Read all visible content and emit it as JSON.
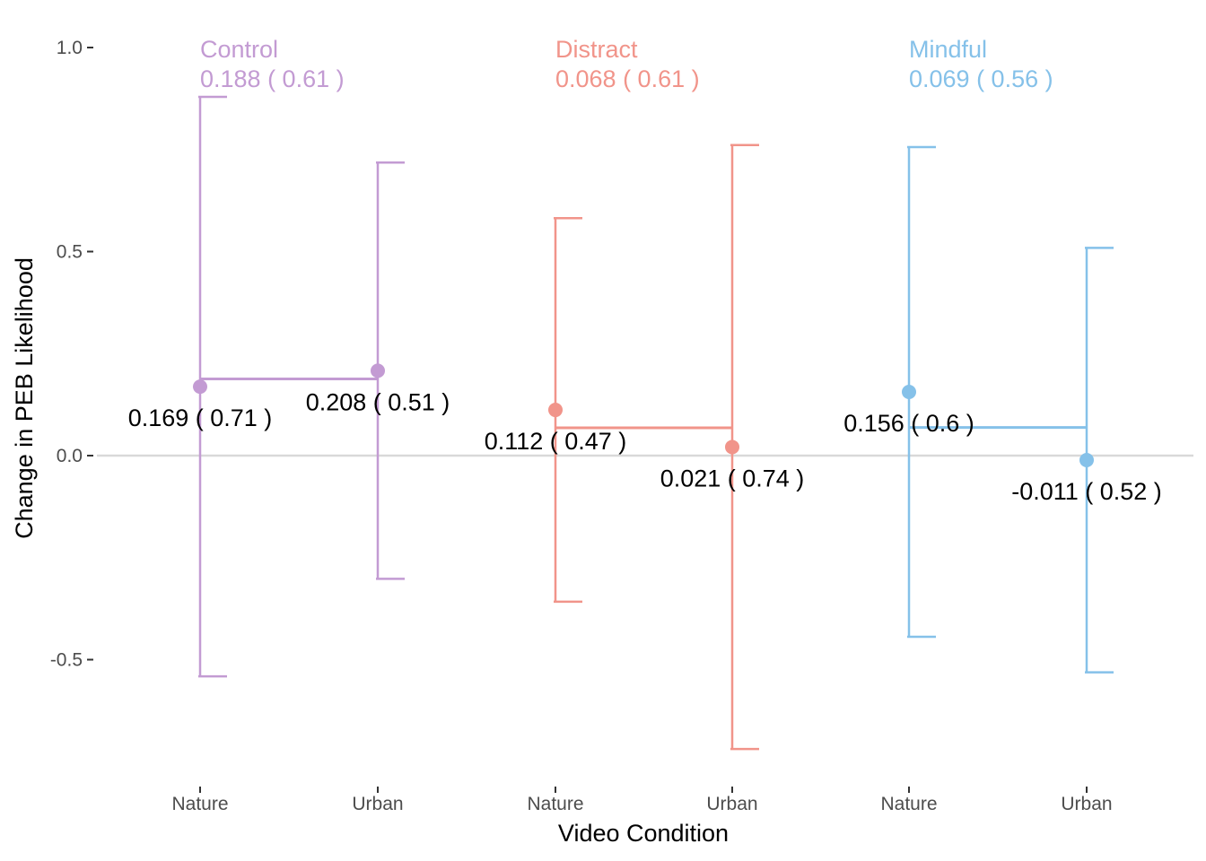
{
  "chart_data": {
    "type": "errorbar",
    "xlabel": "Video Condition",
    "ylabel": "Change in PEB Likelihood",
    "ylim": [
      -0.8,
      1.02
    ],
    "yticks": [
      -0.5,
      0.0,
      0.5,
      1.0
    ],
    "ytick_labels": [
      "-0.5",
      "0.0",
      "0.5",
      "1.0"
    ],
    "reference_line": 0,
    "grid": false,
    "groups": [
      {
        "name": "Control",
        "color": "#c39bd3",
        "summary_label": "0.188 ( 0.61 )",
        "mean": 0.188,
        "points": [
          {
            "category": "Nature",
            "mean": 0.169,
            "sd": 0.71,
            "label": "0.169 ( 0.71 )"
          },
          {
            "category": "Urban",
            "mean": 0.208,
            "sd": 0.51,
            "label": "0.208 ( 0.51 )"
          }
        ]
      },
      {
        "name": "Distract",
        "color": "#f1948a",
        "summary_label": "0.068 ( 0.61 )",
        "mean": 0.068,
        "points": [
          {
            "category": "Nature",
            "mean": 0.112,
            "sd": 0.47,
            "label": "0.112 ( 0.47 )"
          },
          {
            "category": "Urban",
            "mean": 0.021,
            "sd": 0.74,
            "label": "0.021 ( 0.74 )"
          }
        ]
      },
      {
        "name": "Mindful",
        "color": "#85c1e9",
        "summary_label": "0.069 ( 0.56 )",
        "mean": 0.069,
        "points": [
          {
            "category": "Nature",
            "mean": 0.156,
            "sd": 0.6,
            "label": "0.156 ( 0.6 )"
          },
          {
            "category": "Urban",
            "mean": -0.011,
            "sd": 0.52,
            "label": "-0.011 ( 0.52 )"
          }
        ]
      }
    ]
  }
}
